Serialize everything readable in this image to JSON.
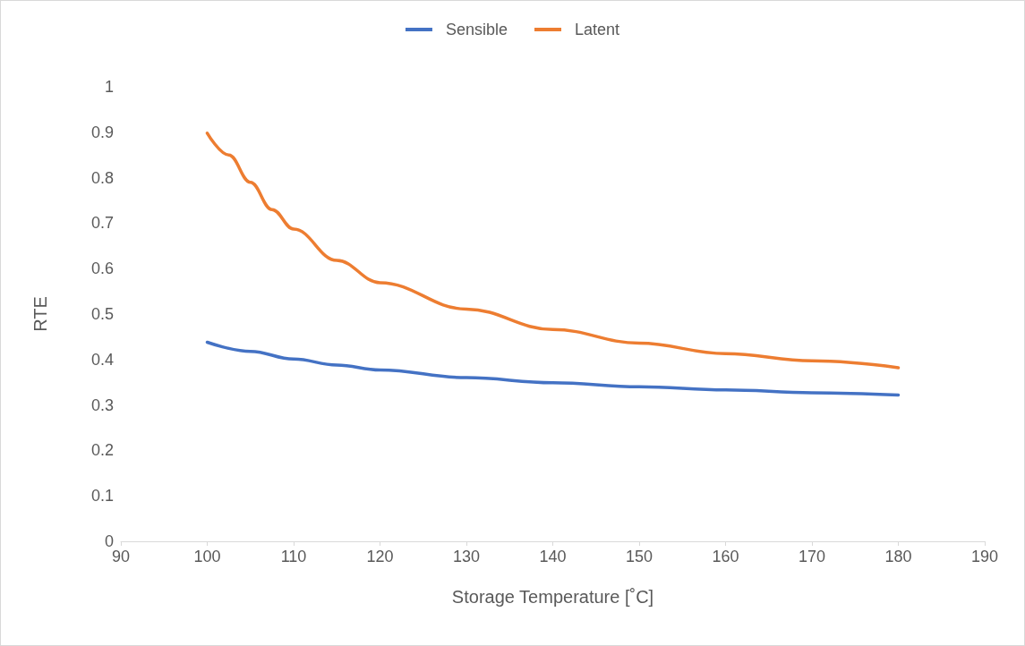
{
  "chart_data": {
    "type": "line",
    "xlabel": "Storage Temperature [˚C]",
    "ylabel": "RTE",
    "xlim": [
      90,
      190
    ],
    "xticks": [
      90,
      100,
      110,
      120,
      130,
      140,
      150,
      160,
      170,
      180,
      190
    ],
    "ylim": [
      0,
      1
    ],
    "yticks": [
      0,
      0.1,
      0.2,
      0.3,
      0.4,
      0.5,
      0.6,
      0.7,
      0.8,
      0.9,
      1
    ],
    "grid": false,
    "legend": "top",
    "marker": "none",
    "line_style": "solid",
    "series": [
      {
        "name": "Sensible",
        "color": "#4472c4",
        "x": [
          100,
          105,
          110,
          115,
          120,
          130,
          140,
          150,
          160,
          170,
          180
        ],
        "values": [
          0.438,
          0.418,
          0.401,
          0.388,
          0.377,
          0.36,
          0.349,
          0.34,
          0.333,
          0.327,
          0.322
        ]
      },
      {
        "name": "Latent",
        "color": "#ed7d31",
        "x": [
          100,
          102.5,
          105,
          107.5,
          110,
          115,
          120,
          130,
          140,
          150,
          160,
          170,
          180
        ],
        "values": [
          0.898,
          0.85,
          0.79,
          0.73,
          0.687,
          0.618,
          0.569,
          0.511,
          0.466,
          0.436,
          0.413,
          0.397,
          0.382
        ]
      }
    ]
  }
}
